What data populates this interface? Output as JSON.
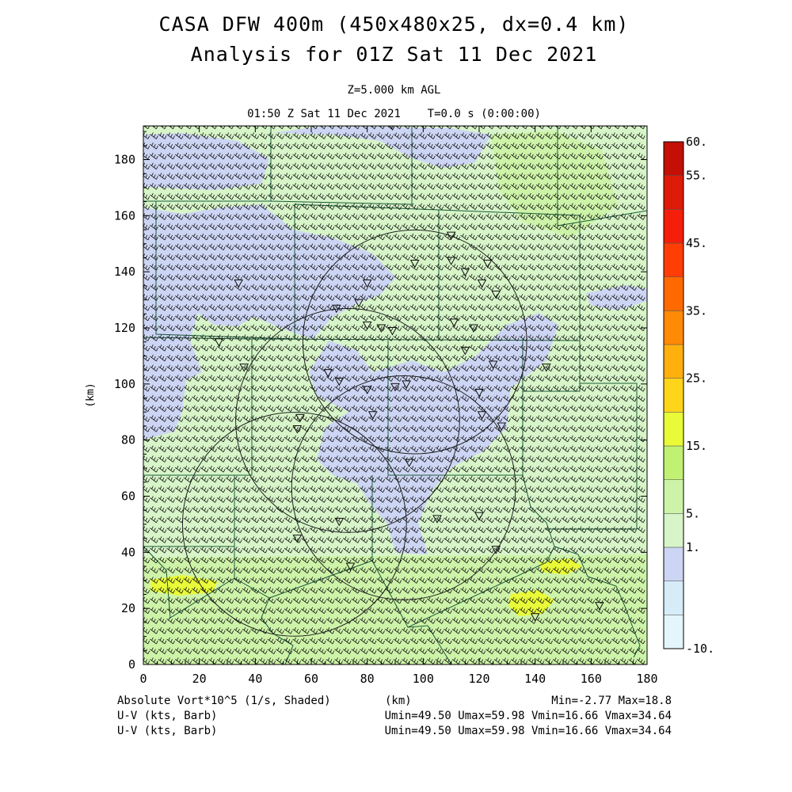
{
  "header": {
    "title_line1": "CASA DFW 400m (450x480x25, dx=0.4 km)",
    "title_line2": "Analysis for 01Z Sat 11 Dec 2021",
    "level": "Z=5.000 km AGL",
    "valid_time": "01:50 Z Sat 11 Dec 2021    T=0.0 s (0:00:00)"
  },
  "footer": {
    "field1": "Absolute Vort*10^5 (1/s, Shaded)",
    "xunit": "(km)",
    "field1_stats": "Min=-2.77 Max=18.8",
    "field2": "U-V (kts, Barb)",
    "field2_stats": "Umin=49.50 Umax=59.98 Vmin=16.66 Vmax=34.64",
    "field3": "U-V (kts, Barb)",
    "field3_stats": "Umin=49.50 Umax=59.98 Vmin=16.66 Vmax=34.64"
  },
  "chart_data": {
    "type": "heatmap",
    "xlabel": "(km)",
    "ylabel": "(km)",
    "xlim": [
      0,
      180
    ],
    "ylim": [
      0,
      192
    ],
    "x_ticks": [
      "0",
      "20",
      "40",
      "60",
      "80",
      "100",
      "120",
      "140",
      "160",
      "180"
    ],
    "y_ticks": [
      "0",
      "20",
      "40",
      "60",
      "80",
      "100",
      "120",
      "140",
      "160",
      "180"
    ],
    "colorbar": {
      "labels": [
        "60.",
        "55.",
        "45.",
        "35.",
        "25.",
        "15.",
        "5.",
        "1.",
        "-10."
      ],
      "levels": [
        -10,
        -5,
        0,
        1,
        5,
        10,
        15,
        20,
        25,
        30,
        35,
        40,
        45,
        50,
        55,
        60
      ],
      "colors": [
        "#e4f6fb",
        "#d6ecf8",
        "#cdd5f4",
        "#d7f5c8",
        "#cdf3a8",
        "#c1f172",
        "#e9fa38",
        "#ffd51c",
        "#ffb00f",
        "#ff8a06",
        "#ff6a00",
        "#ff3d05",
        "#f41e0a",
        "#de1a08",
        "#c30f05"
      ]
    },
    "field_range": {
      "min": -2.77,
      "max": 18.8
    },
    "barbs": {
      "units": "kts",
      "u_range": [
        49.5,
        59.98
      ],
      "v_range": [
        16.66,
        34.64
      ],
      "spacing_km": [
        3,
        3.6
      ]
    },
    "radar_sites": [
      {
        "name": "radar-1",
        "x": 97,
        "y": 115,
        "r": 40
      },
      {
        "name": "radar-2",
        "x": 73,
        "y": 87,
        "r": 40
      },
      {
        "name": "radar-3",
        "x": 93,
        "y": 63,
        "r": 40
      },
      {
        "name": "radar-4",
        "x": 54,
        "y": 50,
        "r": 40
      }
    ],
    "stations": [
      [
        89,
        192
      ],
      [
        110,
        153
      ],
      [
        97,
        143
      ],
      [
        110,
        144
      ],
      [
        115,
        140
      ],
      [
        123,
        143
      ],
      [
        121,
        136
      ],
      [
        126,
        132
      ],
      [
        80,
        136
      ],
      [
        69,
        127
      ],
      [
        34,
        136
      ],
      [
        77,
        129
      ],
      [
        80,
        121
      ],
      [
        85,
        120
      ],
      [
        89,
        119
      ],
      [
        111,
        122
      ],
      [
        118,
        120
      ],
      [
        115,
        112
      ],
      [
        27,
        115
      ],
      [
        36,
        106
      ],
      [
        66,
        104
      ],
      [
        70,
        101
      ],
      [
        80,
        98
      ],
      [
        90,
        99
      ],
      [
        94,
        100
      ],
      [
        120,
        97
      ],
      [
        125,
        107
      ],
      [
        144,
        106
      ],
      [
        82,
        89
      ],
      [
        121,
        89
      ],
      [
        128,
        85
      ],
      [
        56,
        88
      ],
      [
        55,
        84
      ],
      [
        95,
        72
      ],
      [
        70,
        51
      ],
      [
        105,
        52
      ],
      [
        120,
        53
      ],
      [
        55,
        45
      ],
      [
        74,
        35
      ],
      [
        126,
        41
      ],
      [
        140,
        17
      ],
      [
        163,
        21
      ]
    ]
  }
}
